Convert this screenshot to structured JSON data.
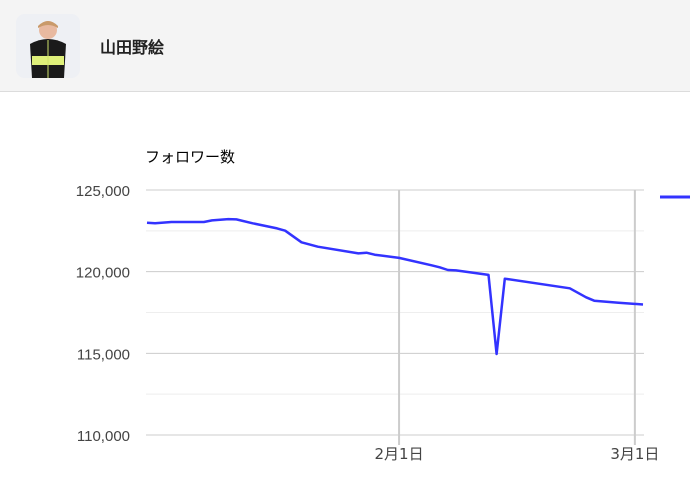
{
  "header": {
    "name": "山田野絵"
  },
  "chart_data": {
    "type": "line",
    "title": "フォロワー数",
    "xlabel": "",
    "ylabel": "",
    "ylim": [
      110000,
      125000
    ],
    "xlim": [
      "2024-01-01",
      "2024-03-02"
    ],
    "yticks": [
      110000,
      115000,
      120000,
      125000
    ],
    "ytick_labels": [
      "110,000",
      "115,000",
      "120,000",
      "125,000"
    ],
    "xticks": [
      "2024-02-01",
      "2024-03-01"
    ],
    "xtick_labels": [
      "2月1日",
      "3月1日"
    ],
    "grid": true,
    "legend": "right (cut off)",
    "series": [
      {
        "color": "#3333ff",
        "points": [
          [
            "2024-01-01",
            123000
          ],
          [
            "2024-01-02",
            122960
          ],
          [
            "2024-01-04",
            123040
          ],
          [
            "2024-01-08",
            123040
          ],
          [
            "2024-01-09",
            123140
          ],
          [
            "2024-01-11",
            123220
          ],
          [
            "2024-01-12",
            123200
          ],
          [
            "2024-01-14",
            122960
          ],
          [
            "2024-01-17",
            122650
          ],
          [
            "2024-01-18",
            122510
          ],
          [
            "2024-01-20",
            121800
          ],
          [
            "2024-01-22",
            121530
          ],
          [
            "2024-01-27",
            121120
          ],
          [
            "2024-01-28",
            121160
          ],
          [
            "2024-01-29",
            121040
          ],
          [
            "2024-02-01",
            120840
          ],
          [
            "2024-02-05",
            120390
          ],
          [
            "2024-02-06",
            120270
          ],
          [
            "2024-02-07",
            120100
          ],
          [
            "2024-02-08",
            120080
          ],
          [
            "2024-02-12",
            119800
          ],
          [
            "2024-02-13",
            114960
          ],
          [
            "2024-02-14",
            119570
          ],
          [
            "2024-02-22",
            118980
          ],
          [
            "2024-02-24",
            118430
          ],
          [
            "2024-02-25",
            118220
          ],
          [
            "2024-02-28",
            118100
          ],
          [
            "2024-03-02",
            117990
          ]
        ]
      }
    ]
  }
}
